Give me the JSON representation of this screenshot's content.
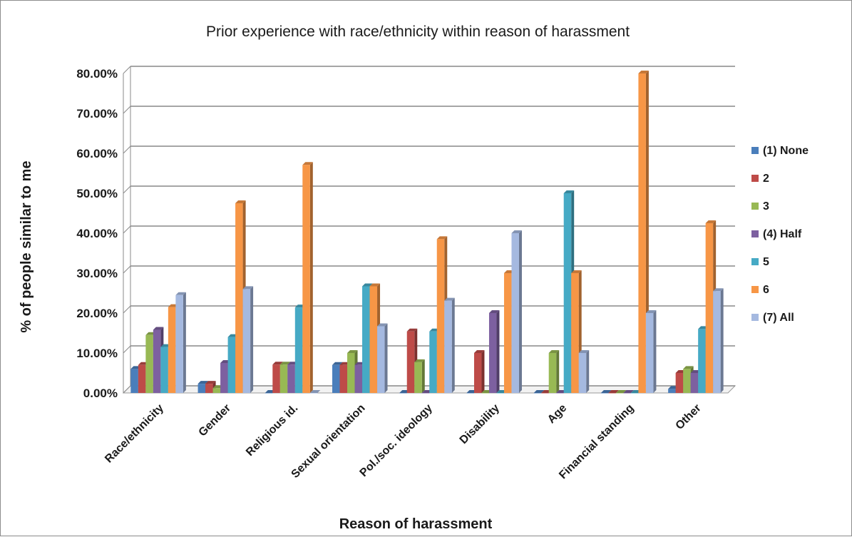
{
  "chart_data": {
    "type": "bar",
    "title": "Prior experience with race/ethnicity within reason of harassment",
    "xlabel": "Reason of harassment",
    "ylabel": "% of people similar to me",
    "ylim": [
      0,
      80
    ],
    "yticks": [
      "0.00%",
      "10.00%",
      "20.00%",
      "30.00%",
      "40.00%",
      "50.00%",
      "60.00%",
      "70.00%",
      "80.00%"
    ],
    "grid": true,
    "legend_position": "right",
    "categories": [
      "Race/ethnicity",
      "Gender",
      "Religious id.",
      "Sexual orientation",
      "Pol./soc. ideology",
      "Disability",
      "Age",
      "Financial standing",
      "Other"
    ],
    "series": [
      {
        "name": "(1) None",
        "color": "#4a7ebb",
        "values": [
          6,
          2.3,
          0,
          7,
          0,
          0,
          0,
          0,
          1
        ]
      },
      {
        "name": "2",
        "color": "#be4b48",
        "values": [
          7,
          2.3,
          7.1,
          7,
          15.4,
          10,
          0,
          0,
          5
        ]
      },
      {
        "name": "3",
        "color": "#98b954",
        "values": [
          14.5,
          1.2,
          7.1,
          10,
          7.7,
          0,
          10,
          0,
          6
        ]
      },
      {
        "name": "(4) Half",
        "color": "#7d60a0",
        "values": [
          15.8,
          7.5,
          7.1,
          7,
          0,
          20,
          0,
          0,
          5
        ]
      },
      {
        "name": "5",
        "color": "#46aac5",
        "values": [
          11.5,
          14,
          21.4,
          26.7,
          15.4,
          0,
          50,
          0,
          16
        ]
      },
      {
        "name": "6",
        "color": "#f79646",
        "values": [
          21.5,
          47.5,
          57.1,
          26.7,
          38.5,
          30,
          30,
          80,
          42.5
        ]
      },
      {
        "name": "(7) All",
        "color": "#a5b9e0",
        "values": [
          24.5,
          26,
          0,
          16.7,
          23.1,
          40,
          10,
          20,
          25.5
        ]
      }
    ]
  }
}
